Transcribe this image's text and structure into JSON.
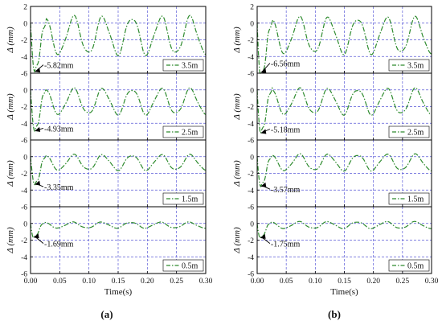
{
  "figure": {
    "panel_labels": [
      "(a)",
      "(b)"
    ],
    "xlabel": "Time(s)",
    "ylabel": "Δ (mm)",
    "xticks": [
      "0.00",
      "0.05",
      "0.10",
      "0.15",
      "0.20",
      "0.25",
      "0.30"
    ],
    "yticks": [
      "2",
      "0",
      "-2",
      "-4",
      "-6"
    ]
  },
  "colors": {
    "series": "#2e8b2e",
    "grid": "#5a5ad8",
    "axis": "#000000",
    "annotation": "#000000"
  },
  "chart_data": [
    {
      "type": "line",
      "panel": "(a)",
      "xlim": [
        0.0,
        0.3
      ],
      "ylim": [
        -6,
        2
      ],
      "xlabel": "Time(s)",
      "ylabel": "Δ (mm)",
      "grid": true,
      "legend_position": "lower-right",
      "subplots": [
        {
          "legend": "3.5m",
          "annotation": "5.82mm",
          "min": -5.82,
          "ann_text_xy": [
            0.022,
            -5.0
          ],
          "t_min": 0.007,
          "amp": 2.2,
          "mean": -1.5,
          "freq": 20
        },
        {
          "legend": "2.5m",
          "annotation": "4.93mm",
          "min": -4.93,
          "ann_text_xy": [
            0.022,
            -4.6
          ],
          "t_min": 0.007,
          "amp": 1.5,
          "mean": -1.4,
          "freq": 20
        },
        {
          "legend": "1.5m",
          "annotation": "3.35mm",
          "min": -3.35,
          "ann_text_xy": [
            0.022,
            -3.6
          ],
          "t_min": 0.007,
          "amp": 0.9,
          "mean": -0.7,
          "freq": 20
        },
        {
          "legend": "0.5m",
          "annotation": "1.69mm",
          "min": -1.69,
          "ann_text_xy": [
            0.022,
            -2.4
          ],
          "t_min": 0.005,
          "amp": 0.35,
          "mean": -0.2,
          "freq": 20
        }
      ]
    },
    {
      "type": "line",
      "panel": "(b)",
      "xlim": [
        0.0,
        0.3
      ],
      "ylim": [
        -6,
        2
      ],
      "xlabel": "Time(s)",
      "ylabel": "Δ (mm)",
      "grid": true,
      "legend_position": "lower-right",
      "subplots": [
        {
          "legend": "3.5m",
          "annotation": "6.56mm",
          "min": -6.56,
          "ann_text_xy": [
            0.022,
            -4.8
          ],
          "t_min": 0.006,
          "amp": 2.1,
          "mean": -1.5,
          "freq": 20
        },
        {
          "legend": "2.5m",
          "annotation": "5.18mm",
          "min": -5.18,
          "ann_text_xy": [
            0.022,
            -4.7
          ],
          "t_min": 0.006,
          "amp": 1.5,
          "mean": -1.4,
          "freq": 20
        },
        {
          "legend": "1.5m",
          "annotation": "3.57mm",
          "min": -3.57,
          "ann_text_xy": [
            0.022,
            -3.9
          ],
          "t_min": 0.006,
          "amp": 0.95,
          "mean": -0.7,
          "freq": 20
        },
        {
          "legend": "0.5m",
          "annotation": "1.75mm",
          "min": -1.75,
          "ann_text_xy": [
            0.022,
            -2.4
          ],
          "t_min": 0.005,
          "amp": 0.4,
          "mean": -0.2,
          "freq": 20
        }
      ]
    }
  ]
}
